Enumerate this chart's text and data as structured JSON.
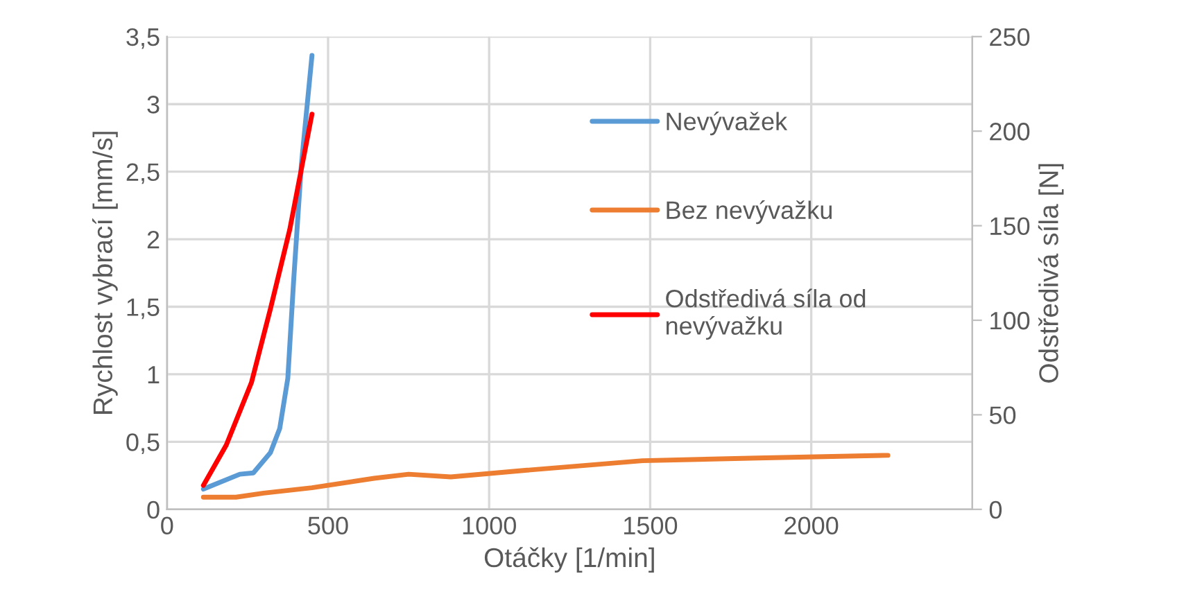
{
  "chart_data": {
    "type": "line",
    "xlabel": "Otáčky [1/min]",
    "ylabel": "Rychlost vybrací [mm/s]",
    "y2label": "Odstředivá síla [N]",
    "xlim": [
      0,
      2500
    ],
    "xticks": [
      0,
      500,
      1000,
      1500,
      2000
    ],
    "ylim": [
      0,
      3.5
    ],
    "yticks": [
      0,
      {
        "value": 0.5,
        "label": "0,5"
      },
      1,
      {
        "value": 1.5,
        "label": "1,5"
      },
      2,
      {
        "value": 2.5,
        "label": "2,5"
      },
      3,
      {
        "value": 3.5,
        "label": "3,5"
      }
    ],
    "y2lim": [
      0,
      250
    ],
    "y2ticks": [
      0,
      50,
      100,
      150,
      200,
      250
    ],
    "grid": true,
    "legend": "right",
    "marker": "none",
    "line_style": "solid",
    "series": [
      {
        "name": "Nevývažek",
        "color": "#5b9bd5",
        "x": [
          113,
          226,
          268,
          321,
          350,
          375,
          393,
          417,
          450
        ],
        "values": [
          0.15,
          0.26,
          0.27,
          0.42,
          0.6,
          0.97,
          1.69,
          2.55,
          3.36
        ]
      },
      {
        "name": "Bez nevývažku",
        "color": "#ed7d31",
        "x": [
          113,
          214,
          300,
          450,
          643,
          750,
          881,
          1118,
          1476,
          1833,
          2238
        ],
        "values": [
          0.09,
          0.09,
          0.12,
          0.16,
          0.23,
          0.26,
          0.24,
          0.29,
          0.36,
          0.38,
          0.4
        ]
      },
      {
        "name": "Odstředivá síla od nevývažku",
        "color": "#ff0000",
        "axis": "y2",
        "x": [
          113,
          184,
          262,
          321,
          381,
          450
        ],
        "values": [
          12.7,
          34,
          67,
          106,
          148,
          209
        ]
      }
    ]
  }
}
